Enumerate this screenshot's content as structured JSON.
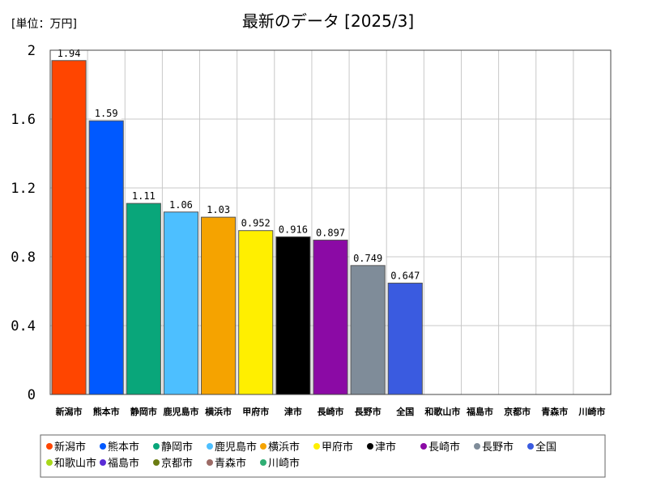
{
  "chart_data": {
    "type": "bar",
    "title": "最新のデータ [2025/3]",
    "unit_label": "[単位：万円]",
    "ylim": [
      0,
      2
    ],
    "yticks": [
      "0",
      "0.4",
      "0.8",
      "1.2",
      "1.6",
      "2"
    ],
    "ytick_values": [
      0,
      0.4,
      0.8,
      1.2,
      1.6,
      2
    ],
    "grid": true,
    "legend_position": "bottom",
    "categories": [
      "新潟市",
      "熊本市",
      "静岡市",
      "鹿児島市",
      "横浜市",
      "甲府市",
      "津市",
      "長崎市",
      "長野市",
      "全国",
      "和歌山市",
      "福島市",
      "京都市",
      "青森市",
      "川崎市"
    ],
    "values": [
      1.94,
      1.59,
      1.11,
      1.06,
      1.03,
      0.952,
      0.916,
      0.897,
      0.749,
      0.647,
      null,
      null,
      null,
      null,
      null
    ],
    "data_labels": [
      "1.94",
      "1.59",
      "1.11",
      "1.06",
      "1.03",
      "0.952",
      "0.916",
      "0.897",
      "0.749",
      "0.647",
      "",
      "",
      "",
      "",
      ""
    ],
    "colors": [
      "#ff4500",
      "#0059ff",
      "#09a67a",
      "#4dbfff",
      "#f5a300",
      "#ffef00",
      "#000000",
      "#8b0aa5",
      "#7f8c99",
      "#3a5be0",
      "#a8d81a",
      "#5a2dd6",
      "#6b7c12",
      "#9c6b66",
      "#2fae73"
    ]
  }
}
